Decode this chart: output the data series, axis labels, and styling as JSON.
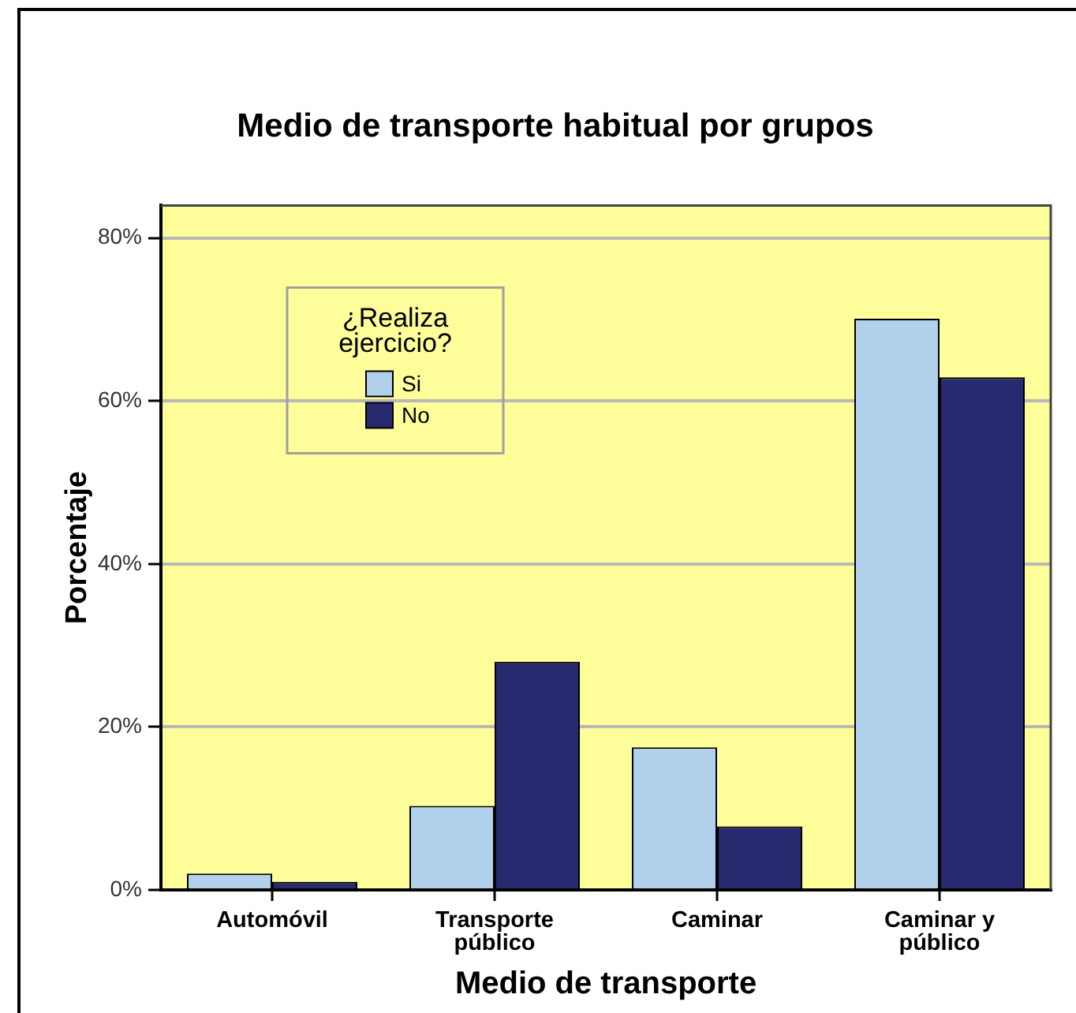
{
  "chart_data": {
    "type": "bar",
    "title": "Medio de transporte habitual por grupos",
    "xlabel": "Medio de transporte",
    "ylabel": "Porcentaje",
    "legend_title": "¿Realiza ejercicio?",
    "categories": [
      "Automóvil",
      "Transporte público",
      "Caminar",
      "Caminar y público"
    ],
    "series": [
      {
        "name": "Si",
        "color": "#b0d0ec",
        "values": [
          2.0,
          10.3,
          17.5,
          70.1
        ]
      },
      {
        "name": "No",
        "color": "#282a6f",
        "values": [
          1.0,
          28.0,
          7.8,
          62.9
        ]
      }
    ],
    "ylim": [
      0,
      84
    ],
    "yticks": [
      {
        "value": 0,
        "label": "0%"
      },
      {
        "value": 20,
        "label": "20%"
      },
      {
        "value": 40,
        "label": "40%"
      },
      {
        "value": 60,
        "label": "60%"
      },
      {
        "value": 80,
        "label": "80%"
      }
    ],
    "grid": "y",
    "legend": "top left"
  }
}
